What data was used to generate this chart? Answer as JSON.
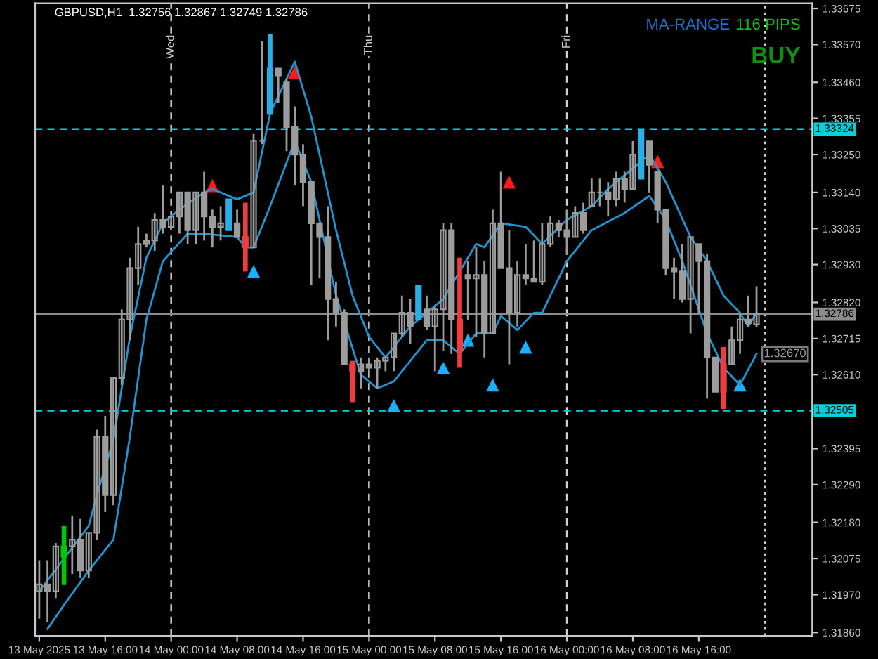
{
  "chart_data": {
    "type": "candlestick",
    "title": "GBPUSD,H1  1.32756 1.32867 1.32749 1.32786",
    "x": [
      "2025-05-13T08:00",
      "2025-05-13T09:00",
      "2025-05-13T10:00",
      "2025-05-13T11:00",
      "2025-05-13T12:00",
      "2025-05-13T13:00",
      "2025-05-13T14:00",
      "2025-05-13T15:00",
      "2025-05-13T16:00",
      "2025-05-13T17:00",
      "2025-05-13T18:00",
      "2025-05-13T19:00",
      "2025-05-13T20:00",
      "2025-05-13T21:00",
      "2025-05-13T22:00",
      "2025-05-13T23:00",
      "2025-05-14T00:00",
      "2025-05-14T01:00",
      "2025-05-14T02:00",
      "2025-05-14T03:00",
      "2025-05-14T04:00",
      "2025-05-14T05:00",
      "2025-05-14T06:00",
      "2025-05-14T07:00",
      "2025-05-14T08:00",
      "2025-05-14T09:00",
      "2025-05-14T10:00",
      "2025-05-14T11:00",
      "2025-05-14T12:00",
      "2025-05-14T13:00",
      "2025-05-14T14:00",
      "2025-05-14T15:00",
      "2025-05-14T16:00",
      "2025-05-14T17:00",
      "2025-05-14T18:00",
      "2025-05-14T19:00",
      "2025-05-14T20:00",
      "2025-05-14T21:00",
      "2025-05-14T22:00",
      "2025-05-14T23:00",
      "2025-05-15T00:00",
      "2025-05-15T01:00",
      "2025-05-15T02:00",
      "2025-05-15T03:00",
      "2025-05-15T04:00",
      "2025-05-15T05:00",
      "2025-05-15T06:00",
      "2025-05-15T07:00",
      "2025-05-15T08:00",
      "2025-05-15T09:00",
      "2025-05-15T10:00",
      "2025-05-15T11:00",
      "2025-05-15T12:00",
      "2025-05-15T13:00",
      "2025-05-15T14:00",
      "2025-05-15T15:00",
      "2025-05-15T16:00",
      "2025-05-15T17:00",
      "2025-05-15T18:00",
      "2025-05-15T19:00",
      "2025-05-15T20:00",
      "2025-05-15T21:00",
      "2025-05-15T22:00",
      "2025-05-15T23:00",
      "2025-05-16T00:00",
      "2025-05-16T01:00",
      "2025-05-16T02:00",
      "2025-05-16T03:00",
      "2025-05-16T04:00",
      "2025-05-16T05:00",
      "2025-05-16T06:00",
      "2025-05-16T07:00",
      "2025-05-16T08:00",
      "2025-05-16T09:00",
      "2025-05-16T10:00",
      "2025-05-16T11:00",
      "2025-05-16T12:00",
      "2025-05-16T13:00",
      "2025-05-16T14:00",
      "2025-05-16T15:00",
      "2025-05-16T16:00",
      "2025-05-16T17:00",
      "2025-05-16T18:00",
      "2025-05-16T19:00",
      "2025-05-16T20:00",
      "2025-05-16T21:00",
      "2025-05-16T22:00",
      "2025-05-16T23:00"
    ],
    "ohlc": [
      [
        1.3198,
        1.3207,
        1.319,
        1.32
      ],
      [
        1.32,
        1.3207,
        1.3189,
        1.3198
      ],
      [
        1.3198,
        1.3212,
        1.3196,
        1.3211
      ],
      [
        1.3208,
        1.3217,
        1.32,
        1.3211
      ],
      [
        1.3211,
        1.322,
        1.3203,
        1.3213
      ],
      [
        1.3213,
        1.3219,
        1.3202,
        1.3204
      ],
      [
        1.3204,
        1.3215,
        1.3202,
        1.3215
      ],
      [
        1.3215,
        1.3245,
        1.3213,
        1.3243
      ],
      [
        1.3243,
        1.3249,
        1.3221,
        1.3226
      ],
      [
        1.3226,
        1.326,
        1.3223,
        1.326
      ],
      [
        1.326,
        1.328,
        1.3258,
        1.3277
      ],
      [
        1.3277,
        1.3295,
        1.3271,
        1.3292
      ],
      [
        1.3292,
        1.3304,
        1.3287,
        1.3299
      ],
      [
        1.3299,
        1.3302,
        1.3298,
        1.33
      ],
      [
        1.33,
        1.3308,
        1.3297,
        1.3306
      ],
      [
        1.3306,
        1.3316,
        1.3302,
        1.3304
      ],
      [
        1.3304,
        1.3307,
        1.3303,
        1.3307
      ],
      [
        1.3307,
        1.3314,
        1.3302,
        1.3314
      ],
      [
        1.3314,
        1.3314,
        1.3299,
        1.3303
      ],
      [
        1.3303,
        1.3314,
        1.3299,
        1.3314
      ],
      [
        1.3314,
        1.332,
        1.33,
        1.3307
      ],
      [
        1.3307,
        1.3309,
        1.3298,
        1.3304
      ],
      [
        1.3304,
        1.331,
        1.33,
        1.3305
      ],
      [
        1.3303,
        1.3312,
        1.3303,
        1.3312
      ],
      [
        1.3305,
        1.3309,
        1.3301,
        1.3301
      ],
      [
        1.3301,
        1.3311,
        1.3291,
        1.3298
      ],
      [
        1.3298,
        1.3331,
        1.3298,
        1.3329
      ],
      [
        1.3329,
        1.3358,
        1.3328,
        1.3329
      ],
      [
        1.3337,
        1.336,
        1.3337,
        1.335
      ],
      [
        1.335,
        1.335,
        1.334,
        1.3348
      ],
      [
        1.3346,
        1.3347,
        1.3326,
        1.3333
      ],
      [
        1.3333,
        1.3339,
        1.3316,
        1.3325
      ],
      [
        1.3325,
        1.3328,
        1.331,
        1.3317
      ],
      [
        1.3317,
        1.3317,
        1.3287,
        1.3305
      ],
      [
        1.3305,
        1.3305,
        1.3289,
        1.3301
      ],
      [
        1.3301,
        1.331,
        1.3271,
        1.3283
      ],
      [
        1.3283,
        1.3288,
        1.3275,
        1.3279
      ],
      [
        1.3279,
        1.328,
        1.3264,
        1.3264
      ],
      [
        1.3264,
        1.3265,
        1.3253,
        1.3262
      ],
      [
        1.3262,
        1.3266,
        1.3257,
        1.3264
      ],
      [
        1.3264,
        1.3266,
        1.3262,
        1.3263
      ],
      [
        1.3263,
        1.3266,
        1.3257,
        1.3265
      ],
      [
        1.3265,
        1.3266,
        1.3262,
        1.3266
      ],
      [
        1.3266,
        1.3273,
        1.3262,
        1.3273
      ],
      [
        1.3273,
        1.3284,
        1.3272,
        1.3279
      ],
      [
        1.3279,
        1.3283,
        1.327,
        1.3275
      ],
      [
        1.3277,
        1.3287,
        1.3277,
        1.3287
      ],
      [
        1.328,
        1.3284,
        1.3274,
        1.3275
      ],
      [
        1.3275,
        1.3281,
        1.3262,
        1.328
      ],
      [
        1.328,
        1.3305,
        1.3268,
        1.3303
      ],
      [
        1.3303,
        1.3305,
        1.3267,
        1.3277
      ],
      [
        1.3277,
        1.3295,
        1.3263,
        1.3268
      ],
      [
        1.329,
        1.3294,
        1.3277,
        1.3289
      ],
      [
        1.3289,
        1.3298,
        1.3272,
        1.329
      ],
      [
        1.329,
        1.3294,
        1.3266,
        1.3273
      ],
      [
        1.3273,
        1.3309,
        1.3273,
        1.3305
      ],
      [
        1.3305,
        1.332,
        1.3292,
        1.3292
      ],
      [
        1.3292,
        1.3303,
        1.3264,
        1.3279
      ],
      [
        1.3279,
        1.3294,
        1.3275,
        1.329
      ],
      [
        1.329,
        1.3299,
        1.3287,
        1.3289
      ],
      [
        1.3289,
        1.33,
        1.3288,
        1.3288
      ],
      [
        1.3288,
        1.3305,
        1.3287,
        1.3299
      ],
      [
        1.3299,
        1.3307,
        1.3298,
        1.3305
      ],
      [
        1.3305,
        1.3306,
        1.3301,
        1.3303
      ],
      [
        1.3303,
        1.3309,
        1.3296,
        1.3301
      ],
      [
        1.3301,
        1.331,
        1.3301,
        1.3308
      ],
      [
        1.3308,
        1.3311,
        1.3302,
        1.3303
      ],
      [
        1.331,
        1.3318,
        1.331,
        1.3314
      ],
      [
        1.3314,
        1.3318,
        1.331,
        1.3314
      ],
      [
        1.3314,
        1.3317,
        1.3307,
        1.3312
      ],
      [
        1.3312,
        1.332,
        1.331,
        1.3318
      ],
      [
        1.3318,
        1.332,
        1.3311,
        1.3315
      ],
      [
        1.3315,
        1.3329,
        1.3315,
        1.3325
      ],
      [
        1.3318,
        1.3332,
        1.3318,
        1.3332
      ],
      [
        1.3329,
        1.3329,
        1.3314,
        1.3322
      ],
      [
        1.332,
        1.332,
        1.3305,
        1.3309
      ],
      [
        1.3309,
        1.3309,
        1.329,
        1.3292
      ],
      [
        1.3292,
        1.3295,
        1.3283,
        1.3291
      ],
      [
        1.3291,
        1.3299,
        1.3282,
        1.3283
      ],
      [
        1.3283,
        1.3301,
        1.3273,
        1.3301
      ],
      [
        1.3299,
        1.3299,
        1.3279,
        1.3294
      ],
      [
        1.3294,
        1.3296,
        1.3254,
        1.3266
      ],
      [
        1.3266,
        1.3266,
        1.3256,
        1.3256
      ],
      [
        1.3256,
        1.3269,
        1.3251,
        1.3264
      ],
      [
        1.3264,
        1.3275,
        1.3264,
        1.3271
      ],
      [
        1.3271,
        1.3279,
        1.3267,
        1.3277
      ],
      [
        1.3277,
        1.3284,
        1.3275,
        1.3276
      ],
      [
        1.32756,
        1.32867,
        1.32749,
        1.32786
      ]
    ],
    "color": "#9c9c9c",
    "colors": [
      "#9c9c9c",
      "#9c9c9c",
      "#9c9c9c",
      "#00c800",
      "#9c9c9c",
      "#9c9c9c",
      "#9c9c9c",
      "#9c9c9c",
      "#9c9c9c",
      "#9c9c9c",
      "#9c9c9c",
      "#9c9c9c",
      "#9c9c9c",
      "#9c9c9c",
      "#9c9c9c",
      "#9c9c9c",
      "#9c9c9c",
      "#9c9c9c",
      "#9c9c9c",
      "#9c9c9c",
      "#9c9c9c",
      "#9c9c9c",
      "#9c9c9c",
      "#29aee6",
      "#9c9c9c",
      "#f03c3c",
      "#9c9c9c",
      "#9c9c9c",
      "#29aee6",
      "#9c9c9c",
      "#9c9c9c",
      "#9c9c9c",
      "#9c9c9c",
      "#9c9c9c",
      "#9c9c9c",
      "#9c9c9c",
      "#9c9c9c",
      "#9c9c9c",
      "#f03c3c",
      "#9c9c9c",
      "#9c9c9c",
      "#9c9c9c",
      "#9c9c9c",
      "#9c9c9c",
      "#9c9c9c",
      "#9c9c9c",
      "#29aee6",
      "#9c9c9c",
      "#9c9c9c",
      "#9c9c9c",
      "#9c9c9c",
      "#f03c3c",
      "#9c9c9c",
      "#9c9c9c",
      "#9c9c9c",
      "#9c9c9c",
      "#9c9c9c",
      "#9c9c9c",
      "#9c9c9c",
      "#9c9c9c",
      "#9c9c9c",
      "#9c9c9c",
      "#9c9c9c",
      "#9c9c9c",
      "#9c9c9c",
      "#9c9c9c",
      "#9c9c9c",
      "#9c9c9c",
      "#9c9c9c",
      "#9c9c9c",
      "#9c9c9c",
      "#9c9c9c",
      "#9c9c9c",
      "#29aee6",
      "#9c9c9c",
      "#9c9c9c",
      "#9c9c9c",
      "#9c9c9c",
      "#9c9c9c",
      "#9c9c9c",
      "#9c9c9c",
      "#9c9c9c",
      "#9c9c9c",
      "#f03c3c",
      "#9c9c9c",
      "#9c9c9c",
      "#9c9c9c",
      "#9c9c9c"
    ],
    "series": [
      {
        "type": "line",
        "color": "#1e96d2",
        "x": [
          "2025-05-13T08:00",
          "2025-05-13T14:00",
          "2025-05-13T15:00",
          "2025-05-13T17:00",
          "2025-05-13T19:00",
          "2025-05-13T21:00",
          "2025-05-13T23:00",
          "2025-05-14T01:00",
          "2025-05-14T04:00",
          "2025-05-14T05:00",
          "2025-05-14T08:00",
          "2025-05-14T10:00",
          "2025-05-14T12:00",
          "2025-05-14T15:00",
          "2025-05-14T17:00",
          "2025-05-14T20:00",
          "2025-05-14T22:00",
          "2025-05-15T00:00",
          "2025-05-15T02:00",
          "2025-05-15T04:00",
          "2025-05-15T05:00",
          "2025-05-15T09:00",
          "2025-05-15T13:00",
          "2025-05-15T14:00",
          "2025-05-15T16:00",
          "2025-05-15T19:00",
          "2025-05-15T21:00",
          "2025-05-16T00:00",
          "2025-05-16T03:00",
          "2025-05-16T05:00",
          "2025-05-16T08:00",
          "2025-05-16T10:00",
          "2025-05-16T12:00",
          "2025-05-16T15:00",
          "2025-05-16T17:00",
          "2025-05-16T19:00",
          "2025-05-16T21:00",
          "2025-05-16T22:00",
          "2025-05-16T23:00"
        ],
        "values": [
          1.3198,
          1.3217,
          1.3226,
          1.3242,
          1.3272,
          1.3295,
          1.3305,
          1.3309,
          1.3314,
          1.3315,
          1.3312,
          1.3314,
          1.3337,
          1.3352,
          1.3336,
          1.3303,
          1.3284,
          1.3272,
          1.3266,
          1.3272,
          1.3275,
          1.3283,
          1.3299,
          1.3298,
          1.3305,
          1.3304,
          1.3299,
          1.3306,
          1.331,
          1.3315,
          1.3321,
          1.3325,
          1.3317,
          1.3301,
          1.3294,
          1.3284,
          1.3279,
          1.3275,
          1.3279
        ]
      },
      {
        "type": "line",
        "color": "#1e96d2",
        "x": [
          "2025-05-13T09:00",
          "2025-05-13T11:00",
          "2025-05-13T14:00",
          "2025-05-13T17:00",
          "2025-05-13T19:00",
          "2025-05-13T21:00",
          "2025-05-13T23:00",
          "2025-05-14T02:00",
          "2025-05-14T04:00",
          "2025-05-14T08:00",
          "2025-05-14T09:00",
          "2025-05-14T10:00",
          "2025-05-14T12:00",
          "2025-05-14T15:00",
          "2025-05-14T17:00",
          "2025-05-14T20:00",
          "2025-05-14T23:00",
          "2025-05-15T01:00",
          "2025-05-15T03:00",
          "2025-05-15T07:00",
          "2025-05-15T09:00",
          "2025-05-15T11:00",
          "2025-05-15T13:00",
          "2025-05-15T15:00",
          "2025-05-15T16:00",
          "2025-05-15T18:00",
          "2025-05-15T20:00",
          "2025-05-15T21:00",
          "2025-05-16T00:00",
          "2025-05-16T03:00",
          "2025-05-16T07:00",
          "2025-05-16T10:00",
          "2025-05-16T12:00",
          "2025-05-16T14:00",
          "2025-05-16T17:00",
          "2025-05-16T19:00",
          "2025-05-16T21:00",
          "2025-05-16T23:00"
        ],
        "values": [
          1.3187,
          1.3194,
          1.3204,
          1.3213,
          1.3243,
          1.3277,
          1.3294,
          1.3302,
          1.3302,
          1.3301,
          1.3298,
          1.3298,
          1.331,
          1.3329,
          1.3317,
          1.3284,
          1.3261,
          1.3257,
          1.3259,
          1.3271,
          1.3271,
          1.3267,
          1.3273,
          1.3273,
          1.3278,
          1.3274,
          1.3279,
          1.3279,
          1.3294,
          1.3303,
          1.3308,
          1.3313,
          1.3306,
          1.3294,
          1.3273,
          1.3263,
          1.3258,
          1.3267
        ]
      },
      {
        "type": "scatter",
        "color": "#ff1a1a",
        "marker": "triangle",
        "x": [
          "2025-05-14T05:00",
          "2025-05-14T15:00",
          "2025-05-15T17:00",
          "2025-05-16T11:00"
        ],
        "values": [
          1.3316,
          1.3349,
          1.3317,
          1.3323
        ]
      },
      {
        "type": "scatter",
        "color": "#1ab0ff",
        "marker": "triangle",
        "x": [
          "2025-05-14T10:00",
          "2025-05-15T03:00",
          "2025-05-15T09:00",
          "2025-05-15T12:00",
          "2025-05-15T15:00",
          "2025-05-15T19:00",
          "2025-05-16T21:00"
        ],
        "values": [
          1.3291,
          1.3252,
          1.3263,
          1.3271,
          1.3258,
          1.3269,
          1.3258
        ]
      }
    ],
    "ref_lines": [
      {
        "axis": "y",
        "value": 1.33324,
        "label": "1.33324",
        "color": "#00d2dc",
        "line_style": "dashed"
      },
      {
        "axis": "y",
        "value": 1.32505,
        "label": "1.32505",
        "color": "#00d2dc",
        "line_style": "dashed"
      },
      {
        "axis": "y",
        "value": 1.32786,
        "label": "1.32786",
        "color": "#8c8c8c",
        "line_style": "solid"
      },
      {
        "axis": "x",
        "value": "2025-05-14T00:00",
        "label": "Wed",
        "color": "#d0d0d0",
        "line_style": "dashed"
      },
      {
        "axis": "x",
        "value": "2025-05-15T00:00",
        "label": "Thu",
        "color": "#d0d0d0",
        "line_style": "dashed"
      },
      {
        "axis": "x",
        "value": "2025-05-16T00:00",
        "label": "Fri",
        "color": "#d0d0d0",
        "line_style": "dashed"
      },
      {
        "axis": "x",
        "value": "2025-05-17T00:00",
        "label": null,
        "color": "#d0d0d0",
        "line_style": "dotted"
      }
    ],
    "annotations": [
      "MA-RANGE",
      "116 PIPS",
      "BUY",
      "1.32670"
    ],
    "xlim": [
      "2025-05-13T07:30",
      "2025-05-17T05:45"
    ],
    "xticks": [
      {
        "value": "2025-05-13T08:00",
        "label": "13 May 2025"
      },
      {
        "value": "2025-05-13T16:00",
        "label": "13 May 16:00"
      },
      {
        "value": "2025-05-14T00:00",
        "label": "14 May 00:00"
      },
      {
        "value": "2025-05-14T08:00",
        "label": "14 May 08:00"
      },
      {
        "value": "2025-05-14T16:00",
        "label": "14 May 16:00"
      },
      {
        "value": "2025-05-15T00:00",
        "label": "15 May 00:00"
      },
      {
        "value": "2025-05-15T08:00",
        "label": "15 May 08:00"
      },
      {
        "value": "2025-05-15T16:00",
        "label": "15 May 16:00"
      },
      {
        "value": "2025-05-16T00:00",
        "label": "16 May 00:00"
      },
      {
        "value": "2025-05-16T08:00",
        "label": "16 May 08:00"
      },
      {
        "value": "2025-05-16T16:00",
        "label": "16 May 16:00"
      }
    ],
    "ylim": [
      1.3185,
      1.3369
    ],
    "yticks": [
      {
        "value": 1.3186,
        "label": "1.31860"
      },
      {
        "value": 1.3197,
        "label": "1.31970"
      },
      1.32075,
      {
        "value": 1.3218,
        "label": "1.32180"
      },
      {
        "value": 1.3229,
        "label": "1.32290"
      },
      1.32395,
      {
        "value": 1.3261,
        "label": "1.32610"
      },
      1.32715,
      {
        "value": 1.3282,
        "label": "1.32820"
      },
      {
        "value": 1.3293,
        "label": "1.32930"
      },
      1.33035,
      {
        "value": 1.3314,
        "label": "1.33140"
      },
      {
        "value": 1.3325,
        "label": "1.33250"
      },
      1.33355,
      {
        "value": 1.3346,
        "label": "1.33460"
      },
      {
        "value": 1.3357,
        "label": "1.33570"
      },
      1.33675
    ],
    "grid": false
  }
}
